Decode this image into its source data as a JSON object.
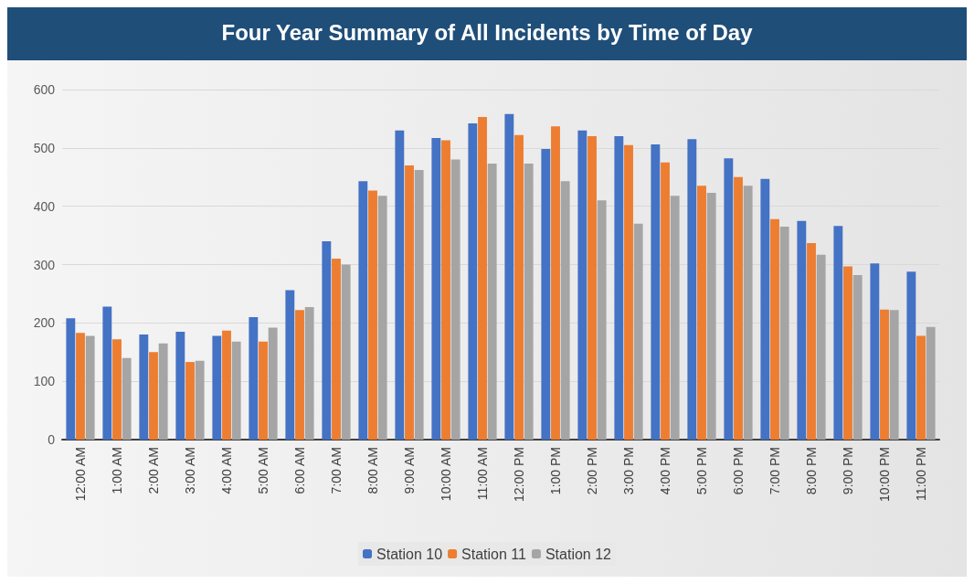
{
  "chart_data": {
    "type": "bar",
    "title": "Four Year Summary of All Incidents by Time of Day",
    "categories": [
      "12:00 AM",
      "1:00 AM",
      "2:00 AM",
      "3:00 AM",
      "4:00 AM",
      "5:00 AM",
      "6:00 AM",
      "7:00 AM",
      "8:00 AM",
      "9:00 AM",
      "10:00 AM",
      "11:00 AM",
      "12:00 PM",
      "1:00 PM",
      "2:00 PM",
      "3:00 PM",
      "4:00 PM",
      "5:00 PM",
      "6:00 PM",
      "7:00 PM",
      "8:00 PM",
      "9:00 PM",
      "10:00 PM",
      "11:00 PM"
    ],
    "series": [
      {
        "name": "Station 10",
        "color": "#4472c4",
        "values": [
          208,
          228,
          180,
          185,
          178,
          210,
          256,
          340,
          443,
          530,
          517,
          542,
          558,
          498,
          530,
          520,
          506,
          515,
          482,
          447,
          375,
          366,
          302,
          288
        ]
      },
      {
        "name": "Station 11",
        "color": "#ed7d31",
        "values": [
          183,
          172,
          150,
          133,
          187,
          168,
          222,
          310,
          427,
          470,
          513,
          553,
          522,
          537,
          520,
          505,
          475,
          435,
          450,
          378,
          337,
          297,
          223,
          178
        ]
      },
      {
        "name": "Station 12",
        "color": "#a5a5a5",
        "values": [
          178,
          140,
          165,
          135,
          168,
          192,
          227,
          300,
          418,
          462,
          480,
          473,
          473,
          443,
          410,
          370,
          418,
          423,
          435,
          365,
          317,
          282,
          222,
          193
        ]
      }
    ],
    "ylim": [
      0,
      600
    ],
    "yticks": [
      0,
      100,
      200,
      300,
      400,
      500,
      600
    ],
    "grid": "y",
    "legend": "bottom"
  }
}
